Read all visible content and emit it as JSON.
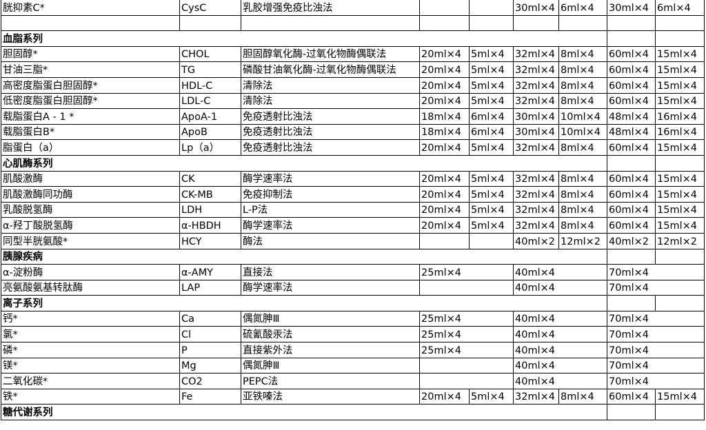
{
  "rows": [
    {
      "cells": [
        {
          "t": "胱抑素C*"
        },
        {
          "t": "CysC"
        },
        {
          "t": "乳胶增强免疫比浊法"
        },
        {
          "t": ""
        },
        {
          "t": ""
        },
        {
          "t": "30ml×4"
        },
        {
          "t": "6ml×4"
        },
        {
          "t": "30ml×4"
        },
        {
          "t": "6ml×4"
        }
      ]
    },
    {
      "cells": [
        {
          "t": ""
        },
        {
          "t": ""
        },
        {
          "t": ""
        },
        {
          "t": ""
        },
        {
          "t": ""
        },
        {
          "t": ""
        },
        {
          "t": ""
        },
        {
          "t": ""
        },
        {
          "t": ""
        }
      ]
    },
    {
      "section": true,
      "cells": [
        {
          "t": "血脂系列",
          "span": 7
        },
        {
          "t": ""
        },
        {
          "t": ""
        }
      ]
    },
    {
      "cells": [
        {
          "t": "胆固醇*"
        },
        {
          "t": "CHOL"
        },
        {
          "t": "胆固醇氧化酶-过氧化物酶偶联法"
        },
        {
          "t": "20ml×4"
        },
        {
          "t": "5ml×4"
        },
        {
          "t": "32ml×4"
        },
        {
          "t": "8ml×4"
        },
        {
          "t": "60ml×4"
        },
        {
          "t": "15ml×4"
        }
      ]
    },
    {
      "cells": [
        {
          "t": "甘油三脂*"
        },
        {
          "t": "TG"
        },
        {
          "t": "磷酸甘油氧化酶-过氧化物酶偶联法"
        },
        {
          "t": "20ml×4"
        },
        {
          "t": "5ml×4"
        },
        {
          "t": "32ml×4"
        },
        {
          "t": "8ml×4"
        },
        {
          "t": "60ml×4"
        },
        {
          "t": "15ml×4"
        }
      ]
    },
    {
      "cells": [
        {
          "t": "高密度脂蛋白胆固醇*"
        },
        {
          "t": "HDL-C"
        },
        {
          "t": "清除法"
        },
        {
          "t": "20ml×4"
        },
        {
          "t": "5ml×4"
        },
        {
          "t": "32ml×4"
        },
        {
          "t": "8ml×4"
        },
        {
          "t": "60ml×4"
        },
        {
          "t": "15ml×4"
        }
      ]
    },
    {
      "cells": [
        {
          "t": "低密度脂蛋白胆固醇*"
        },
        {
          "t": "LDL-C"
        },
        {
          "t": "清除法"
        },
        {
          "t": "20ml×4"
        },
        {
          "t": "5ml×4"
        },
        {
          "t": "32ml×4"
        },
        {
          "t": "8ml×4"
        },
        {
          "t": "60ml×4"
        },
        {
          "t": "15ml×4"
        }
      ]
    },
    {
      "cells": [
        {
          "t": "载脂蛋白A - 1 *"
        },
        {
          "t": "ApoA-1"
        },
        {
          "t": "免疫透射比浊法"
        },
        {
          "t": "18ml×4"
        },
        {
          "t": "6ml×4"
        },
        {
          "t": "30ml×4"
        },
        {
          "t": "10ml×4"
        },
        {
          "t": "48ml×4"
        },
        {
          "t": "16ml×4"
        }
      ]
    },
    {
      "cells": [
        {
          "t": "载脂蛋白B*"
        },
        {
          "t": "ApoB"
        },
        {
          "t": "免疫透射比浊法"
        },
        {
          "t": "18ml×4"
        },
        {
          "t": "6ml×4"
        },
        {
          "t": "30ml×4"
        },
        {
          "t": "10ml×4"
        },
        {
          "t": "48ml×4"
        },
        {
          "t": "16ml×4"
        }
      ]
    },
    {
      "cells": [
        {
          "t": "脂蛋白（a）"
        },
        {
          "t": "Lp（a）"
        },
        {
          "t": "免疫透射比浊法"
        },
        {
          "t": "20ml×4"
        },
        {
          "t": "5ml×4"
        },
        {
          "t": "32ml×4"
        },
        {
          "t": "8ml×4"
        },
        {
          "t": "60ml×4"
        },
        {
          "t": "15ml×4"
        }
      ]
    },
    {
      "section": true,
      "cells": [
        {
          "t": "心肌酶系列",
          "span": 7
        },
        {
          "t": ""
        },
        {
          "t": ""
        }
      ]
    },
    {
      "cells": [
        {
          "t": "肌酸激酶"
        },
        {
          "t": "CK"
        },
        {
          "t": "酶学速率法"
        },
        {
          "t": "20ml×4"
        },
        {
          "t": "5ml×4"
        },
        {
          "t": "32ml×4"
        },
        {
          "t": "8ml×4"
        },
        {
          "t": "60ml×4"
        },
        {
          "t": "15ml×4"
        }
      ]
    },
    {
      "cells": [
        {
          "t": "肌酸激酶同功酶"
        },
        {
          "t": "CK-MB"
        },
        {
          "t": "免疫抑制法"
        },
        {
          "t": "20ml×4"
        },
        {
          "t": "5ml×4"
        },
        {
          "t": "32ml×4"
        },
        {
          "t": "8ml×4"
        },
        {
          "t": "60ml×4"
        },
        {
          "t": "15ml×4"
        }
      ]
    },
    {
      "cells": [
        {
          "t": "乳酸脱氢酶"
        },
        {
          "t": "LDH"
        },
        {
          "t": "L-P法"
        },
        {
          "t": "20ml×4"
        },
        {
          "t": "5ml×4"
        },
        {
          "t": "32ml×4"
        },
        {
          "t": "8ml×4"
        },
        {
          "t": "60ml×4"
        },
        {
          "t": "15ml×4"
        }
      ]
    },
    {
      "cells": [
        {
          "t": "α-羟丁酸脱氢酶"
        },
        {
          "t": "α-HBDH"
        },
        {
          "t": "酶学速率法"
        },
        {
          "t": "20ml×4"
        },
        {
          "t": "5ml×4"
        },
        {
          "t": "32ml×4"
        },
        {
          "t": "8ml×4"
        },
        {
          "t": "60ml×4"
        },
        {
          "t": "15ml×4"
        }
      ]
    },
    {
      "cells": [
        {
          "t": "同型半胱氨酸*"
        },
        {
          "t": "HCY"
        },
        {
          "t": "酶法"
        },
        {
          "t": ""
        },
        {
          "t": ""
        },
        {
          "t": "40ml×2"
        },
        {
          "t": "12ml×2"
        },
        {
          "t": "40ml×2"
        },
        {
          "t": "12ml×2"
        }
      ]
    },
    {
      "section": true,
      "cells": [
        {
          "t": "胰腺疾病",
          "span": 7
        },
        {
          "t": ""
        },
        {
          "t": ""
        }
      ]
    },
    {
      "cells": [
        {
          "t": "α-淀粉酶"
        },
        {
          "t": "α-AMY"
        },
        {
          "t": "直接法"
        },
        {
          "t": "25ml×4",
          "span": 2
        },
        {
          "t": "40ml×4",
          "span": 2
        },
        {
          "t": "70ml×4",
          "span": 2
        }
      ]
    },
    {
      "cells": [
        {
          "t": "亮氨酸氨基转肽酶"
        },
        {
          "t": "LAP"
        },
        {
          "t": "酶学速率法"
        },
        {
          "t": "",
          "span": 2
        },
        {
          "t": "40ml×4",
          "span": 2
        },
        {
          "t": "70ml×4",
          "span": 2
        }
      ]
    },
    {
      "section": true,
      "cells": [
        {
          "t": "离子系列",
          "span": 7
        },
        {
          "t": ""
        },
        {
          "t": ""
        }
      ]
    },
    {
      "cells": [
        {
          "t": "钙*"
        },
        {
          "t": "Ca"
        },
        {
          "t": "偶氮胂Ⅲ"
        },
        {
          "t": "25ml×4",
          "span": 2
        },
        {
          "t": "40ml×4",
          "span": 2
        },
        {
          "t": "70ml×4",
          "span": 2
        }
      ]
    },
    {
      "cells": [
        {
          "t": "氯*"
        },
        {
          "t": "Cl"
        },
        {
          "t": "硫氰酸汞法"
        },
        {
          "t": "25ml×4",
          "span": 2
        },
        {
          "t": "40ml×4",
          "span": 2
        },
        {
          "t": "70ml×4",
          "span": 2
        }
      ]
    },
    {
      "cells": [
        {
          "t": "磷*"
        },
        {
          "t": "P"
        },
        {
          "t": "直接紫外法"
        },
        {
          "t": "25ml×4",
          "span": 2
        },
        {
          "t": "40ml×4",
          "span": 2
        },
        {
          "t": "70ml×4",
          "span": 2
        }
      ]
    },
    {
      "cells": [
        {
          "t": "镁*"
        },
        {
          "t": "Mg"
        },
        {
          "t": "偶氮胂Ⅲ"
        },
        {
          "t": "",
          "span": 2
        },
        {
          "t": "40ml×4",
          "span": 2
        },
        {
          "t": "70ml×4",
          "span": 2
        }
      ]
    },
    {
      "cells": [
        {
          "t": "二氧化碳*"
        },
        {
          "t": "CO2"
        },
        {
          "t": "PEPC法"
        },
        {
          "t": "",
          "span": 2
        },
        {
          "t": "40ml×4",
          "span": 2
        },
        {
          "t": "70ml×4",
          "span": 2
        }
      ]
    },
    {
      "cells": [
        {
          "t": "铁*"
        },
        {
          "t": "Fe"
        },
        {
          "t": "亚铁嗪法"
        },
        {
          "t": "20ml×4"
        },
        {
          "t": "5ml×4"
        },
        {
          "t": "32ml×4"
        },
        {
          "t": "8ml×4"
        },
        {
          "t": "60ml×4"
        },
        {
          "t": "15ml×4"
        }
      ]
    },
    {
      "section": true,
      "cells": [
        {
          "t": "糖代谢系列",
          "span": 7
        },
        {
          "t": ""
        },
        {
          "t": ""
        }
      ]
    }
  ]
}
